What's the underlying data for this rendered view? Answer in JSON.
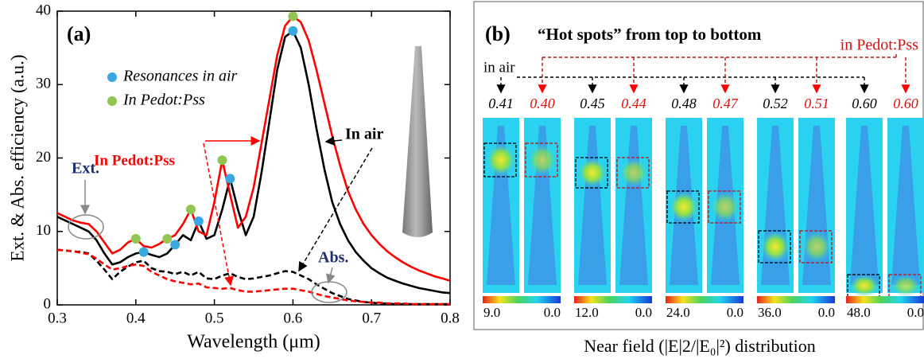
{
  "chart_data": {
    "type": "line",
    "panel_label": "(a)",
    "xlabel": "Wavelength (μm)",
    "ylabel": "Ext. & Abs. efficiency (a.u.)",
    "xlim": [
      0.3,
      0.8
    ],
    "xticks": [
      0.3,
      0.4,
      0.5,
      0.6,
      0.7,
      0.8
    ],
    "ylim": [
      0,
      40
    ],
    "yticks": [
      0,
      10,
      20,
      30,
      40
    ],
    "x": [
      0.3,
      0.31,
      0.32,
      0.33,
      0.34,
      0.35,
      0.36,
      0.37,
      0.38,
      0.39,
      0.4,
      0.41,
      0.42,
      0.43,
      0.44,
      0.45,
      0.46,
      0.47,
      0.48,
      0.49,
      0.5,
      0.51,
      0.52,
      0.53,
      0.54,
      0.55,
      0.56,
      0.57,
      0.58,
      0.59,
      0.6,
      0.61,
      0.62,
      0.63,
      0.64,
      0.65,
      0.66,
      0.67,
      0.68,
      0.69,
      0.7,
      0.71,
      0.72,
      0.73,
      0.74,
      0.75,
      0.76,
      0.77,
      0.78,
      0.79,
      0.8
    ],
    "series": [
      {
        "type": "line",
        "color": "#000000",
        "linestyle": "solid",
        "values": [
          12,
          11.5,
          11,
          10.5,
          10,
          8.8,
          7,
          5.5,
          5.8,
          6.5,
          7,
          7.2,
          6.8,
          6.5,
          7,
          8.2,
          9.5,
          8.8,
          11.4,
          9,
          9.5,
          13,
          17.2,
          13,
          9.5,
          12,
          18,
          25,
          32,
          36.5,
          37.3,
          35,
          30,
          24,
          18.5,
          14,
          11,
          8.8,
          7.2,
          6,
          5,
          4.3,
          3.7,
          3.3,
          2.9,
          2.6,
          2.3,
          2.1,
          1.9,
          1.7,
          1.6
        ]
      },
      {
        "type": "line",
        "color": "#ff0000",
        "linestyle": "solid",
        "values": [
          12.5,
          12,
          11.5,
          11.2,
          11,
          10,
          8.5,
          7,
          7.5,
          8.5,
          9,
          8,
          7.8,
          8.3,
          9,
          9.5,
          11,
          13,
          10,
          9.5,
          14,
          19.7,
          15,
          10.5,
          12,
          16,
          22,
          28,
          34,
          38,
          39.3,
          38.5,
          36,
          32,
          27.5,
          23,
          19,
          15.5,
          13,
          11,
          9.5,
          8.3,
          7.3,
          6.5,
          5.8,
          5.2,
          4.7,
          4.3,
          3.9,
          3.6,
          3.3
        ]
      },
      {
        "type": "line",
        "color": "#000000",
        "linestyle": "dashed",
        "values": [
          7.5,
          7.4,
          7.3,
          7.2,
          7,
          6,
          4.8,
          3.5,
          4.5,
          5.2,
          5.8,
          6,
          5,
          4.6,
          4.5,
          4.2,
          4.5,
          4,
          4.5,
          3.6,
          3.5,
          4,
          4.3,
          3.8,
          3.5,
          3.6,
          3.8,
          4,
          4.3,
          4.6,
          4.5,
          4,
          3.5,
          2.8,
          2.2,
          1.6,
          1.2,
          0.8,
          0.6,
          0.4,
          0.3,
          0.2,
          0.2,
          0.1,
          0.1,
          0.1,
          0.1,
          0.1,
          0.1,
          0.1,
          0.1
        ]
      },
      {
        "type": "line",
        "color": "#ff0000",
        "linestyle": "dashed",
        "values": [
          7.5,
          7.4,
          7.3,
          7.1,
          6.9,
          6.3,
          5.5,
          4.8,
          5,
          5.3,
          5.5,
          5.3,
          4.5,
          4,
          3.5,
          3.2,
          3,
          2.8,
          2.9,
          2.4,
          2.3,
          2.2,
          2.3,
          2,
          1.8,
          1.8,
          1.9,
          2,
          2.1,
          2.2,
          2.2,
          2,
          1.8,
          1.5,
          1.2,
          1,
          0.8,
          0.6,
          0.5,
          0.4,
          0.3,
          0.3,
          0.2,
          0.2,
          0.2,
          0.1,
          0.1,
          0.1,
          0.1,
          0.1,
          0.1
        ]
      },
      {
        "type": "scatter",
        "name": "Resonances in air",
        "color": "#3aa8e0",
        "x": [
          0.41,
          0.45,
          0.48,
          0.52,
          0.6
        ],
        "values": [
          7.2,
          8.2,
          11.4,
          17.2,
          37.3
        ]
      },
      {
        "type": "scatter",
        "name": "In Pedot:Pss",
        "color": "#92c653",
        "x": [
          0.4,
          0.44,
          0.47,
          0.51,
          0.6
        ],
        "values": [
          9,
          9,
          13,
          19.7,
          39.3
        ]
      }
    ],
    "annotations": [
      {
        "text": "In air",
        "color": "#000000"
      },
      {
        "text": "In Pedot:Pss",
        "color": "#ff0000"
      },
      {
        "text": "Ext.",
        "color": "#1f2f6e"
      },
      {
        "text": "Abs.",
        "color": "#1f2f6e"
      }
    ]
  },
  "panel_b": {
    "panel_label": "(b)",
    "title": "“Hot spots” from top to bottom",
    "air_label": "in air",
    "pedot_label": "in Pedot:Pss",
    "groups": [
      {
        "air": "0.41",
        "pedot": "0.40",
        "max": "9.0",
        "min": "0.0"
      },
      {
        "air": "0.45",
        "pedot": "0.44",
        "max": "12.0",
        "min": "0.0"
      },
      {
        "air": "0.48",
        "pedot": "0.47",
        "max": "24.0",
        "min": "0.0"
      },
      {
        "air": "0.52",
        "pedot": "0.51",
        "max": "36.0",
        "min": "0.0"
      },
      {
        "air": "0.60",
        "pedot": "0.60",
        "max": "48.0",
        "min": "0.0"
      }
    ],
    "caption": "Near field (|E|2/|E₀|²) distribution"
  }
}
